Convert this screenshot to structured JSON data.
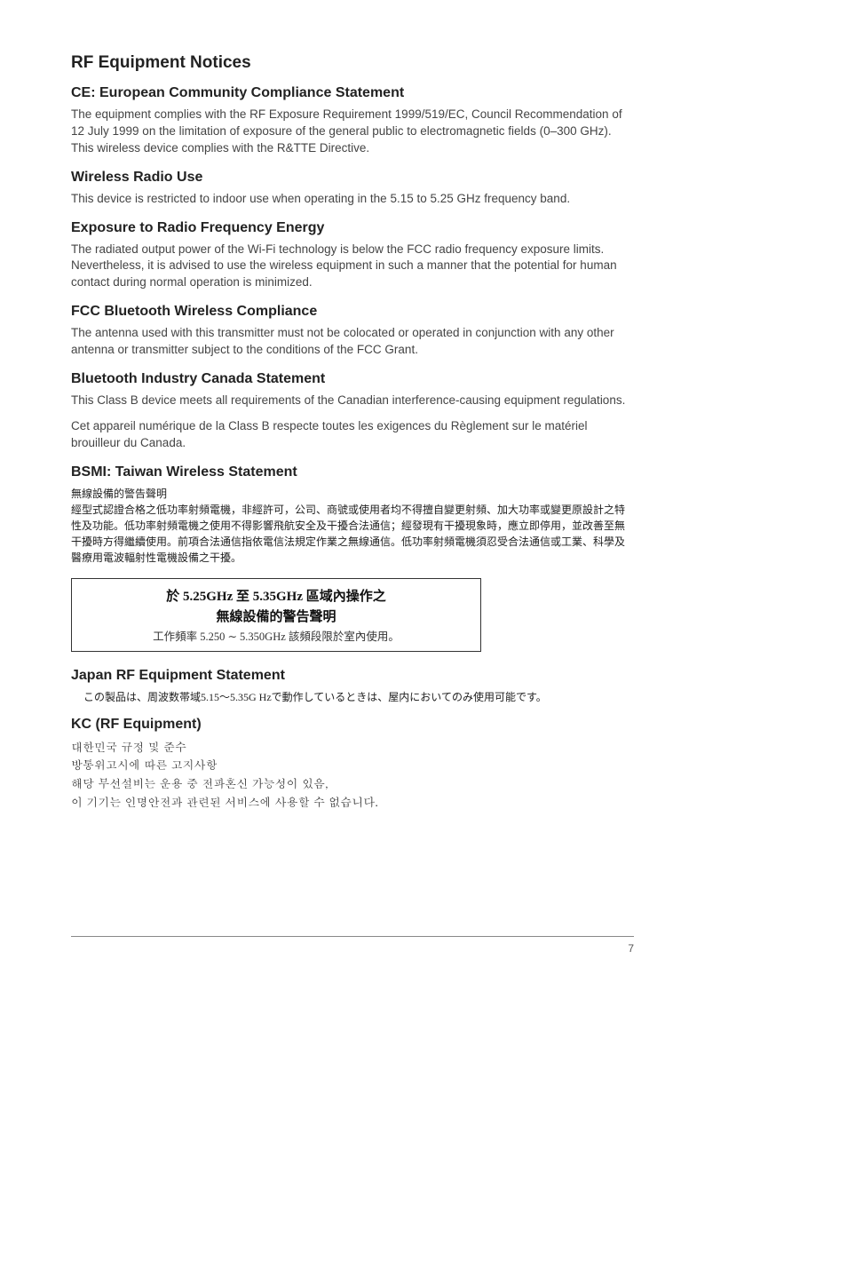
{
  "mainHeading": "RF Equipment Notices",
  "sections": [
    {
      "heading": "CE: European Community Compliance Statement",
      "paragraphs": [
        "The equipment complies with the RF Exposure Requirement 1999/519/EC, Council Recommendation of 12 July 1999 on the limitation of exposure of the general public to electromagnetic fields (0–300 GHz). This wireless device complies with the R&TTE Directive."
      ]
    },
    {
      "heading": "Wireless Radio Use",
      "paragraphs": [
        "This device is restricted to indoor use when operating in the 5.15 to 5.25 GHz frequency band."
      ]
    },
    {
      "heading": "Exposure to Radio Frequency Energy",
      "paragraphs": [
        "The radiated output power of the Wi-Fi technology is below the FCC radio frequency exposure limits. Nevertheless, it is advised to use the wireless equipment in such a manner that the potential for human contact during normal operation is minimized."
      ]
    },
    {
      "heading": "FCC Bluetooth Wireless Compliance",
      "paragraphs": [
        "The antenna used with this transmitter must not be colocated or operated in conjunction with any other antenna or transmitter subject to the conditions of the FCC Grant."
      ]
    },
    {
      "heading": "Bluetooth Industry Canada Statement",
      "paragraphs": [
        "This Class B device meets all requirements of the Canadian interference-causing equipment regulations.",
        "Cet appareil numérique de la Class B respecte toutes les exigences du Règlement sur le matériel brouilleur du Canada."
      ]
    }
  ],
  "bsmi": {
    "heading": "BSMI: Taiwan Wireless Statement",
    "cjkTitle": "無線設備的警告聲明",
    "cjkBody": "經型式認證合格之低功率射頻電機，非經許可，公司、商號或使用者均不得擅自變更射頻、加大功率或變更原設計之特性及功能。低功率射頻電機之使用不得影響飛航安全及干擾合法通信；經發現有干擾現象時，應立即停用，並改善至無干擾時方得繼續使用。前項合法通信指依電信法規定作業之無線通信。低功率射頻電機須忍受合法通信或工業、科學及醫療用電波輻射性電機設備之干擾。",
    "boxTitle1": "於 5.25GHz 至 5.35GHz 區域內操作之",
    "boxTitle2": "無線設備的警告聲明",
    "boxSub": "工作頻率 5.250 ∼ 5.350GHz 該頻段限於室內使用。"
  },
  "japan": {
    "heading": "Japan RF Equipment Statement",
    "line": "この製品は、周波数帯域5.15〜5.35G Hzで動作しているときは、屋内においてのみ使用可能です。"
  },
  "kc": {
    "heading": "KC (RF Equipment)",
    "lines": [
      "대한민국 규정 및 준수",
      "방통위고시에 따른 고지사항",
      "해당 무선설비는 운용 중 전파혼신 가능성이 있음,",
      "이 기기는 인명안전과 관련된 서비스에 사용할 수 없습니다."
    ]
  },
  "pageNumber": "7"
}
